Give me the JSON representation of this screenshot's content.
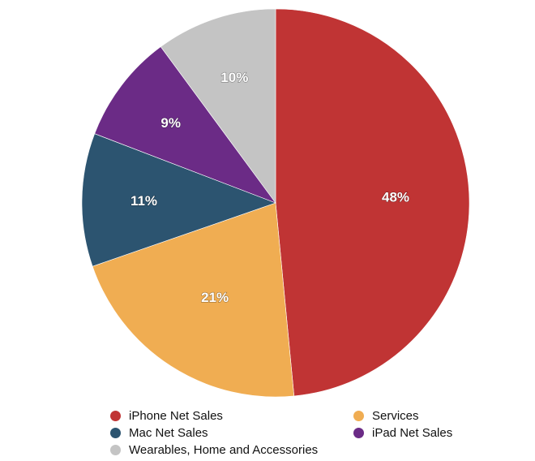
{
  "chart_data": {
    "type": "pie",
    "categories": [
      "iPhone Net Sales",
      "Services",
      "Mac Net Sales",
      "iPad Net Sales",
      "Wearables, Home and Accessories"
    ],
    "values": [
      48,
      21,
      11,
      9,
      10
    ],
    "labels": [
      "48%",
      "21%",
      "11%",
      "9%",
      "10%"
    ],
    "colors": [
      "#c03434",
      "#f0ad52",
      "#2c5470",
      "#6b2b86",
      "#c4c4c4"
    ],
    "slice_order": [
      "iPhone Net Sales",
      "Services",
      "Mac Net Sales",
      "iPad Net Sales",
      "Wearables, Home and Accessories"
    ],
    "start_angle_deg": 0,
    "direction": "clockwise",
    "legend_position": "bottom",
    "title": "",
    "xlabel": "",
    "ylabel": ""
  },
  "legend": {
    "items": [
      {
        "label": "iPhone Net Sales",
        "color": "#c03434"
      },
      {
        "label": "Services",
        "color": "#f0ad52"
      },
      {
        "label": "Mac Net Sales",
        "color": "#2c5470"
      },
      {
        "label": "iPad Net Sales",
        "color": "#6b2b86"
      },
      {
        "label": "Wearables, Home and Accessories",
        "color": "#c4c4c4"
      }
    ]
  }
}
